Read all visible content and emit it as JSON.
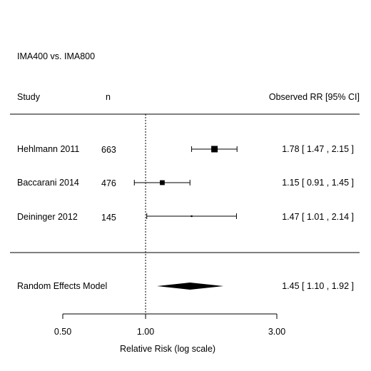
{
  "chart_data": {
    "type": "forest",
    "comparison": "IMA400 vs. IMA800",
    "headers": {
      "study": "Study",
      "n": "n",
      "estimate": "Observed RR [95% CI]"
    },
    "studies": [
      {
        "name": "Hehlmann 2011",
        "n": "663",
        "rr": 1.78,
        "lo": 1.47,
        "hi": 2.15,
        "label": "1.78 [ 1.47 , 2.15 ]",
        "weight": 1.0
      },
      {
        "name": "Baccarani 2014",
        "n": "476",
        "rr": 1.15,
        "lo": 0.91,
        "hi": 1.45,
        "label": "1.15 [ 0.91 , 1.45 ]",
        "weight": 0.75
      },
      {
        "name": "Deininger 2012",
        "n": "145",
        "rr": 1.47,
        "lo": 1.01,
        "hi": 2.14,
        "label": "1.47 [ 1.01 , 2.14 ]",
        "weight": 0.25
      }
    ],
    "summary": {
      "name": "Random Effects Model",
      "rr": 1.45,
      "lo": 1.1,
      "hi": 1.92,
      "label": "1.45 [ 1.10 , 1.92 ]"
    },
    "x_axis": {
      "label": "Relative Risk (log scale)",
      "scale": "log",
      "ticks": [
        0.5,
        1.0,
        3.0
      ],
      "tick_labels": [
        "0.50",
        "1.00",
        "3.00"
      ],
      "range": [
        0.5,
        3.0
      ],
      "reference_line": 1.0
    }
  }
}
